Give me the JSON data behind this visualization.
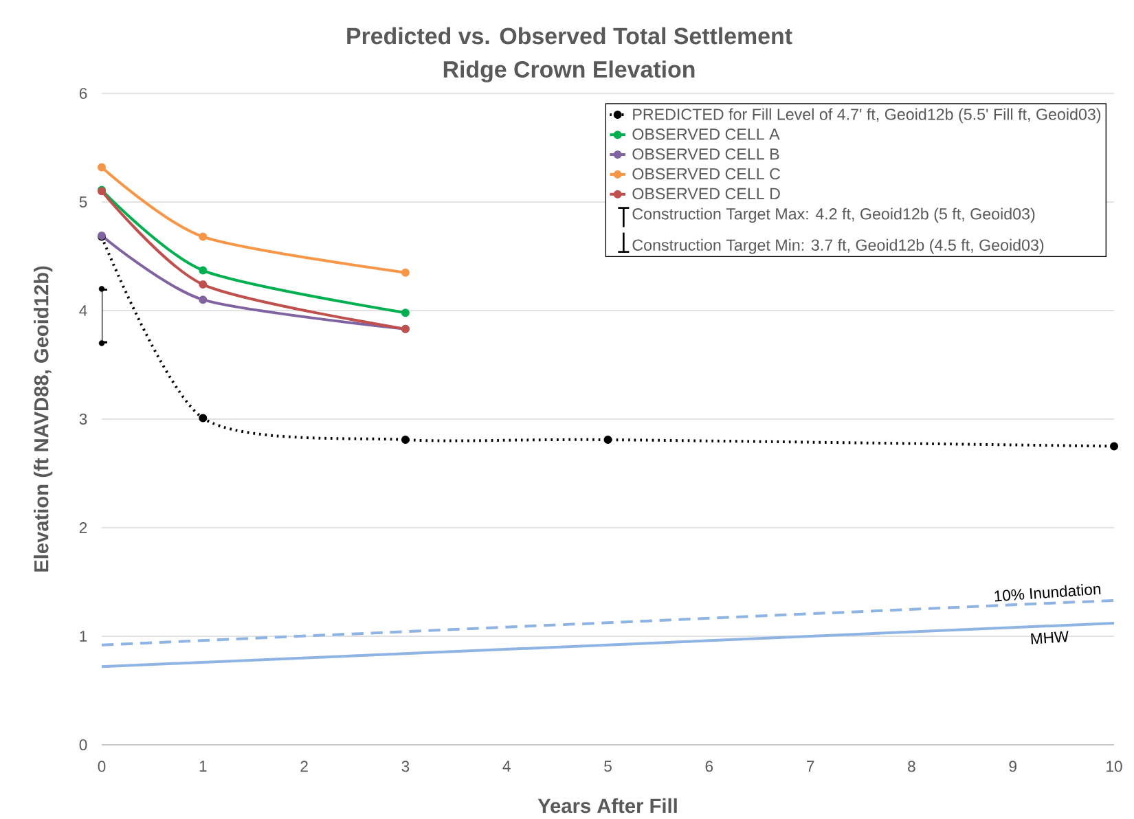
{
  "chart_data": {
    "type": "line",
    "title": "Predicted vs. Observed Total Settlement",
    "subtitle": "Ridge Crown Elevation",
    "xlabel": "Years After Fill",
    "ylabel": "Elevation (ft NAVD88, Geoid12b)",
    "xlim": [
      0,
      10
    ],
    "xticks": [
      0,
      1,
      2,
      3,
      4,
      5,
      6,
      7,
      8,
      9,
      10
    ],
    "ylim": [
      0,
      6
    ],
    "yticks": [
      0,
      1,
      2,
      3,
      4,
      5,
      6
    ],
    "grid": "y",
    "legend": "top right",
    "series": [
      {
        "name": "PREDICTED for Fill Level of 4.7' ft, Geoid12b (5.5' Fill ft, Geoid03)",
        "x": [
          0,
          1,
          3,
          5,
          10
        ],
        "values": [
          4.68,
          3.01,
          2.81,
          2.81,
          2.75
        ],
        "color": "#000000",
        "line_style": "dotted",
        "marker": "circle"
      },
      {
        "name": "OBSERVED CELL A",
        "x": [
          0,
          1,
          3
        ],
        "values": [
          5.11,
          4.37,
          3.98
        ],
        "color": "#00b050",
        "line_style": "solid",
        "marker": "circle"
      },
      {
        "name": "OBSERVED CELL B",
        "x": [
          0,
          1,
          3
        ],
        "values": [
          4.69,
          4.1,
          3.83
        ],
        "color": "#8064a2",
        "line_style": "solid",
        "marker": "circle"
      },
      {
        "name": "OBSERVED CELL C",
        "x": [
          0,
          1,
          3
        ],
        "values": [
          5.32,
          4.68,
          4.35
        ],
        "color": "#f79646",
        "line_style": "solid",
        "marker": "circle"
      },
      {
        "name": "OBSERVED CELL D",
        "x": [
          0,
          1,
          3
        ],
        "values": [
          5.1,
          4.24,
          3.83
        ],
        "color": "#c0504d",
        "line_style": "solid",
        "marker": "circle"
      },
      {
        "name": "Construction Target Max: 4.2 ft, Geoid12b (5 ft, Geoid03)",
        "type": "scatter",
        "x": [
          0
        ],
        "values": [
          4.2
        ],
        "errors": [
          [
            3.7,
            4.2
          ]
        ],
        "color": "#000000"
      },
      {
        "name": "Construction Target Min: 3.7 ft, Geoid12b (4.5 ft, Geoid03)",
        "type": "scatter",
        "x": [
          0
        ],
        "values": [
          3.7
        ],
        "errors": [
          [
            3.7,
            4.2
          ]
        ],
        "color": "#000000"
      },
      {
        "x": [
          0,
          10
        ],
        "values": [
          0.92,
          1.33
        ],
        "color": "#8eb4e3",
        "line_style": "dashed",
        "marker": "none"
      },
      {
        "x": [
          0,
          10
        ],
        "values": [
          0.72,
          1.12
        ],
        "color": "#8eb4e3",
        "line_style": "solid",
        "marker": "none"
      }
    ],
    "annotations": [
      "10% Inundation",
      "MHW"
    ]
  }
}
